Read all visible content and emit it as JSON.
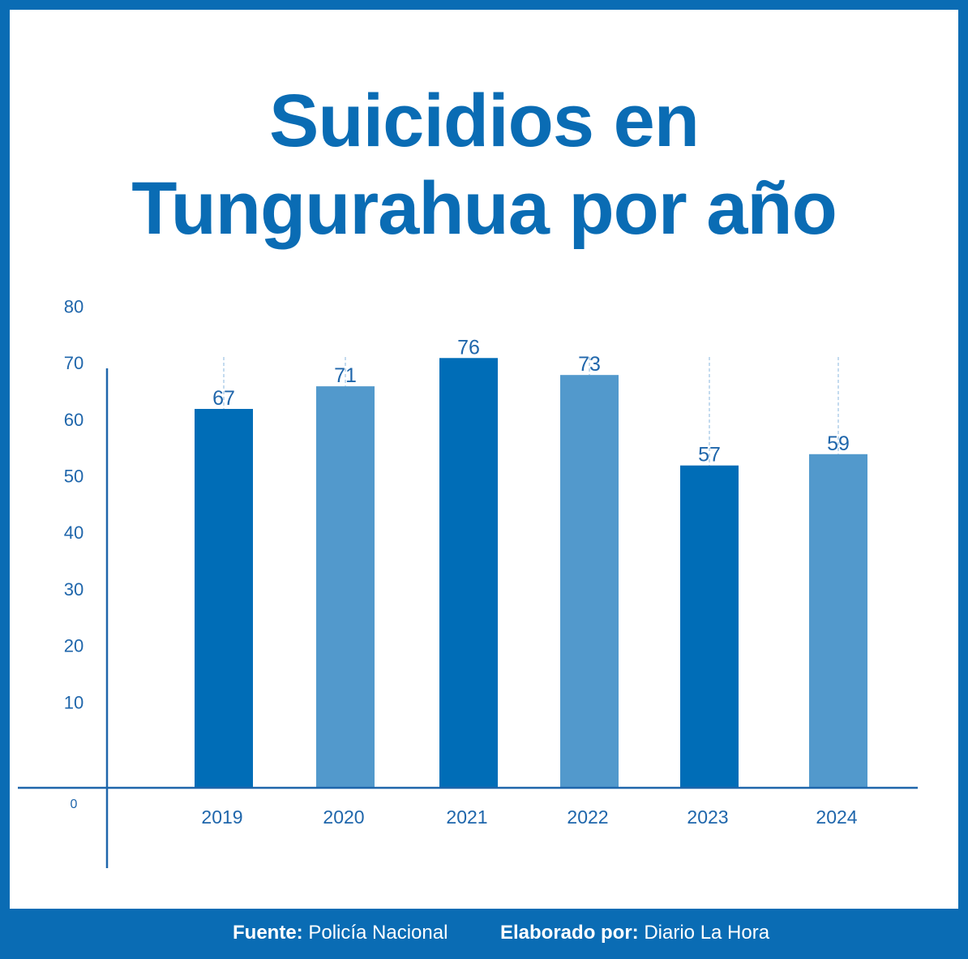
{
  "title": [
    "Suicidios en",
    "Tungurahua por año"
  ],
  "footer": {
    "source_label": "Fuente:",
    "source_value": "Policía Nacional",
    "author_label": "Elaborado por:",
    "author_value": "Diario La Hora"
  },
  "colors": {
    "primary": "#0a6cb4",
    "dark_bar": "#006db7",
    "light_bar": "#5299cc",
    "axis": "#1f66ab"
  },
  "chart_data": {
    "type": "bar",
    "title": "Suicidios en Tungurahua por año",
    "xlabel": "",
    "ylabel": "",
    "categories": [
      "2019",
      "2020",
      "2021",
      "2022",
      "2023",
      "2024"
    ],
    "values": [
      67,
      71,
      76,
      73,
      57,
      59
    ],
    "data_labels": [
      "67",
      "71",
      "76",
      "73",
      "57",
      "59"
    ],
    "bar_colors": [
      "#006db7",
      "#5299cc",
      "#006db7",
      "#5299cc",
      "#006db7",
      "#5299cc"
    ],
    "ylim": [
      0,
      80
    ],
    "yticks": [
      "0",
      "10",
      "20",
      "30",
      "40",
      "50",
      "60",
      "70",
      "80"
    ],
    "grid": false,
    "legend": "none"
  }
}
